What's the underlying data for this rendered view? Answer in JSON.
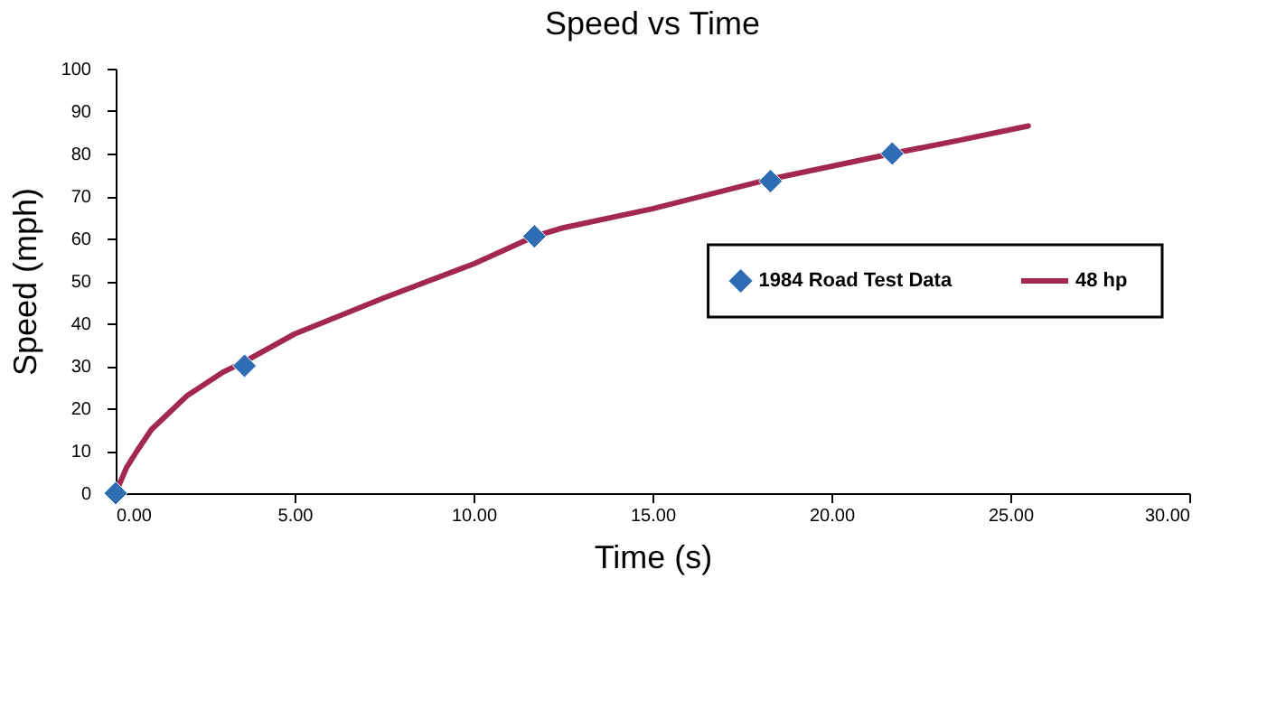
{
  "chart_data": {
    "type": "line",
    "title": "Speed vs Time",
    "xlabel": "Time (s)",
    "ylabel": "Speed (mph)",
    "xlim": [
      0,
      30
    ],
    "xticks": [
      {
        "value": 0,
        "label": "0.00"
      },
      {
        "value": 5,
        "label": "5.00"
      },
      {
        "value": 10,
        "label": "10.00"
      },
      {
        "value": 15,
        "label": "15.00"
      },
      {
        "value": 20,
        "label": "20.00"
      },
      {
        "value": 25,
        "label": "25.00"
      },
      {
        "value": 30,
        "label": "30.00"
      }
    ],
    "ylim": [
      0,
      100
    ],
    "yticks": [
      0,
      10,
      20,
      30,
      40,
      50,
      60,
      70,
      80,
      90,
      100
    ],
    "grid": false,
    "legend": "right",
    "series": [
      {
        "name": "1984 Road Test Data",
        "type": "scatter",
        "marker": "diamond",
        "color": "#2e6db4",
        "x": [
          0,
          3.6,
          11.7,
          18.3,
          21.7
        ],
        "values": [
          0,
          30,
          60.5,
          73.5,
          80
        ]
      },
      {
        "name": "48 hp",
        "marker": "none",
        "line_style": "solid",
        "color": "#a3284f",
        "x": [
          0,
          0.3,
          0.6,
          1,
          1.5,
          2,
          3,
          3.6,
          5,
          7.5,
          10,
          11.7,
          12.5,
          15,
          18.3,
          21.7,
          23.5,
          25.5
        ],
        "values": [
          0,
          6,
          10,
          15,
          19,
          23,
          28.5,
          31,
          37.5,
          46,
          54,
          60.5,
          62.5,
          67,
          74,
          80,
          83,
          86.5
        ]
      }
    ]
  }
}
